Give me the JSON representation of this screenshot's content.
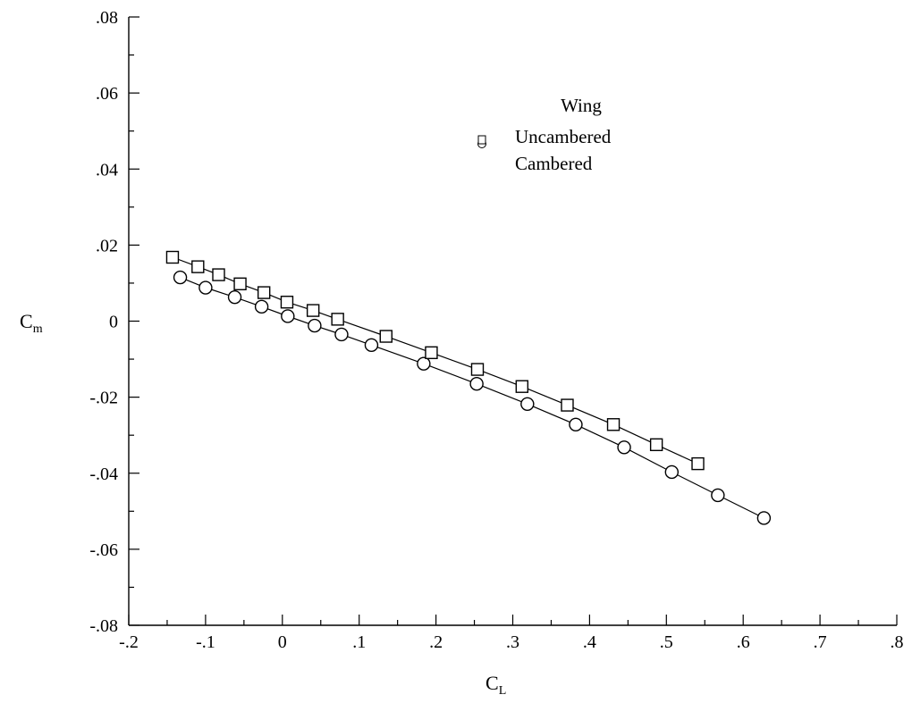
{
  "chart_data": {
    "type": "line",
    "xlabel": {
      "main": "C",
      "sub": "L"
    },
    "ylabel": {
      "main": "C",
      "sub": "m"
    },
    "xlim": [
      -0.2,
      0.8
    ],
    "ylim": [
      -0.08,
      0.08
    ],
    "x_ticks": [
      -0.2,
      -0.1,
      0,
      0.1,
      0.2,
      0.3,
      0.4,
      0.5,
      0.6,
      0.7,
      0.8
    ],
    "x_tick_labels": [
      "-.2",
      "-.1",
      "0",
      ".1",
      ".2",
      ".3",
      ".4",
      ".5",
      ".6",
      ".7",
      ".8"
    ],
    "y_ticks": [
      -0.08,
      -0.06,
      -0.04,
      -0.02,
      0,
      0.02,
      0.04,
      0.06,
      0.08
    ],
    "y_tick_labels": [
      "-.08",
      "-.06",
      "-.04",
      "-.02",
      "0",
      ".02",
      ".04",
      ".06",
      ".08"
    ],
    "grid": false,
    "legend": {
      "title": "Wing",
      "placement": "top-center",
      "entries": [
        "Uncambered",
        "Cambered"
      ]
    },
    "series": [
      {
        "name": "Uncambered",
        "marker": "circle",
        "x": [
          -0.133,
          -0.1,
          -0.062,
          -0.027,
          0.007,
          0.042,
          0.077,
          0.116,
          0.184,
          0.253,
          0.319,
          0.382,
          0.445,
          0.507,
          0.567,
          0.627
        ],
        "y": [
          0.0115,
          0.0088,
          0.0063,
          0.0038,
          0.0013,
          -0.0012,
          -0.0035,
          -0.0063,
          -0.0112,
          -0.0165,
          -0.0218,
          -0.0272,
          -0.0332,
          -0.0397,
          -0.0458,
          -0.0518
        ]
      },
      {
        "name": "Cambered",
        "marker": "square",
        "x": [
          -0.143,
          -0.11,
          -0.083,
          -0.055,
          -0.024,
          0.006,
          0.04,
          0.072,
          0.135,
          0.194,
          0.254,
          0.312,
          0.371,
          0.431,
          0.487,
          0.541
        ],
        "y": [
          0.0168,
          0.0143,
          0.0122,
          0.0098,
          0.0075,
          0.005,
          0.0028,
          0.0005,
          -0.004,
          -0.0083,
          -0.0127,
          -0.0172,
          -0.0221,
          -0.0272,
          -0.0325,
          -0.0375
        ]
      }
    ]
  }
}
